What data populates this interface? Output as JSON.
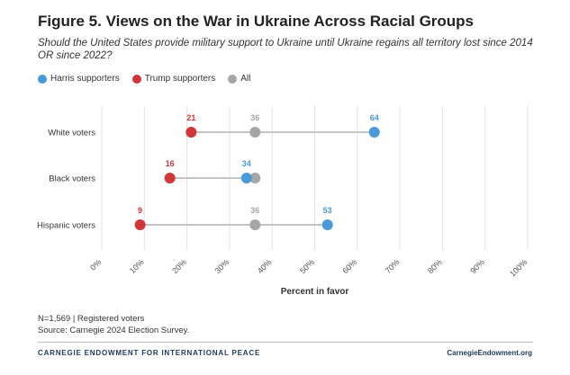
{
  "title": "Figure 5. Views on the War in Ukraine Across Racial Groups",
  "subtitle": "Should the United States provide military support to Ukraine until Ukraine regains all territory lost since 2014 OR since 2022?",
  "legend": [
    {
      "label": "Harris supporters",
      "color": "#4a9ad9"
    },
    {
      "label": "Trump supporters",
      "color": "#d0363a"
    },
    {
      "label": "All",
      "color": "#a6a6a6"
    }
  ],
  "chart_data": {
    "type": "dot",
    "xlabel": "Percent in favor",
    "xlim": [
      0,
      100
    ],
    "xticks": [
      "0%",
      "10%",
      "20%",
      "30%",
      "40%",
      "50%",
      "60%",
      "70%",
      "80%",
      "90%",
      "100%"
    ],
    "categories": [
      "White voters",
      "Black voters",
      "Hispanic voters"
    ],
    "series": [
      {
        "name": "Trump supporters",
        "color": "#d0363a",
        "values": [
          21,
          16,
          9
        ]
      },
      {
        "name": "All",
        "color": "#a6a6a6",
        "values": [
          36,
          36,
          36
        ]
      },
      {
        "name": "Harris supporters",
        "color": "#4a9ad9",
        "values": [
          64,
          34,
          53
        ]
      }
    ],
    "labels": {
      "Trump supporters": [
        "21",
        "16",
        "9"
      ],
      "All": [
        "36",
        "",
        "36"
      ],
      "Harris supporters": [
        "64",
        "34",
        "53"
      ]
    },
    "grid": true
  },
  "footnote": {
    "line1": "N=1,569 | Registered voters",
    "line2": "Source: Carnegie 2024 Election Survey."
  },
  "brand": {
    "left": "CARNEGIE ENDOWMENT FOR INTERNATIONAL PEACE",
    "right": "CarnegieEndowment.org"
  }
}
